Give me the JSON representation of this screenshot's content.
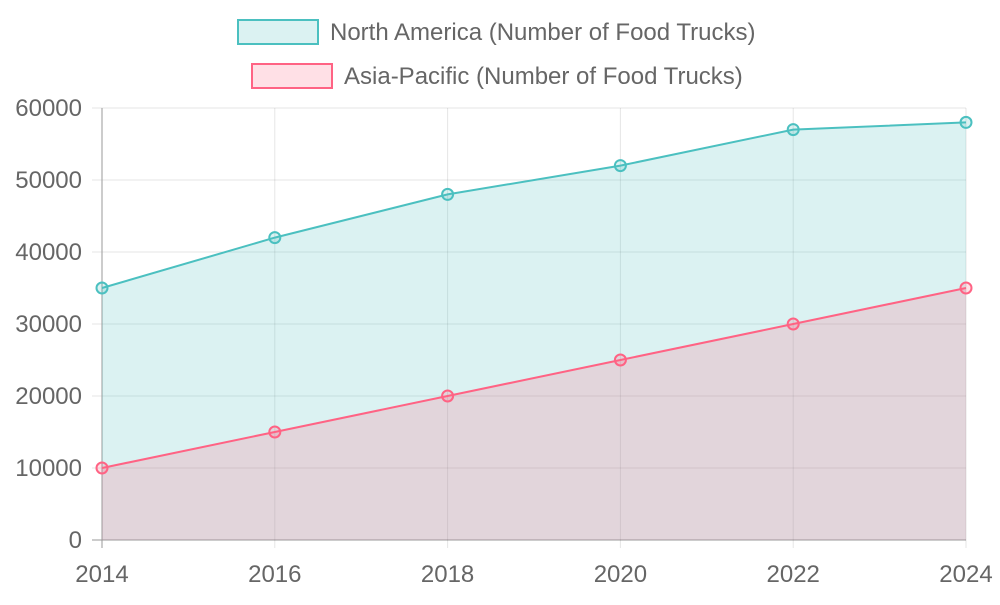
{
  "chart_data": {
    "type": "area",
    "categories": [
      "2014",
      "2016",
      "2018",
      "2020",
      "2022",
      "2024"
    ],
    "series": [
      {
        "name": "North America (Number of Food Trucks)",
        "values": [
          35000,
          42000,
          48000,
          52000,
          57000,
          58000
        ],
        "color": "#4bc0c0",
        "fill": "rgba(75,192,192,0.2)"
      },
      {
        "name": "Asia-Pacific (Number of Food Trucks)",
        "values": [
          10000,
          15000,
          20000,
          25000,
          30000,
          35000
        ],
        "color": "#ff6384",
        "fill": "rgba(255,99,132,0.2)"
      }
    ],
    "ylim": [
      0,
      60000
    ],
    "yticks": [
      "0",
      "10000",
      "20000",
      "30000",
      "40000",
      "50000",
      "60000"
    ],
    "grid": true,
    "legend": "top"
  }
}
